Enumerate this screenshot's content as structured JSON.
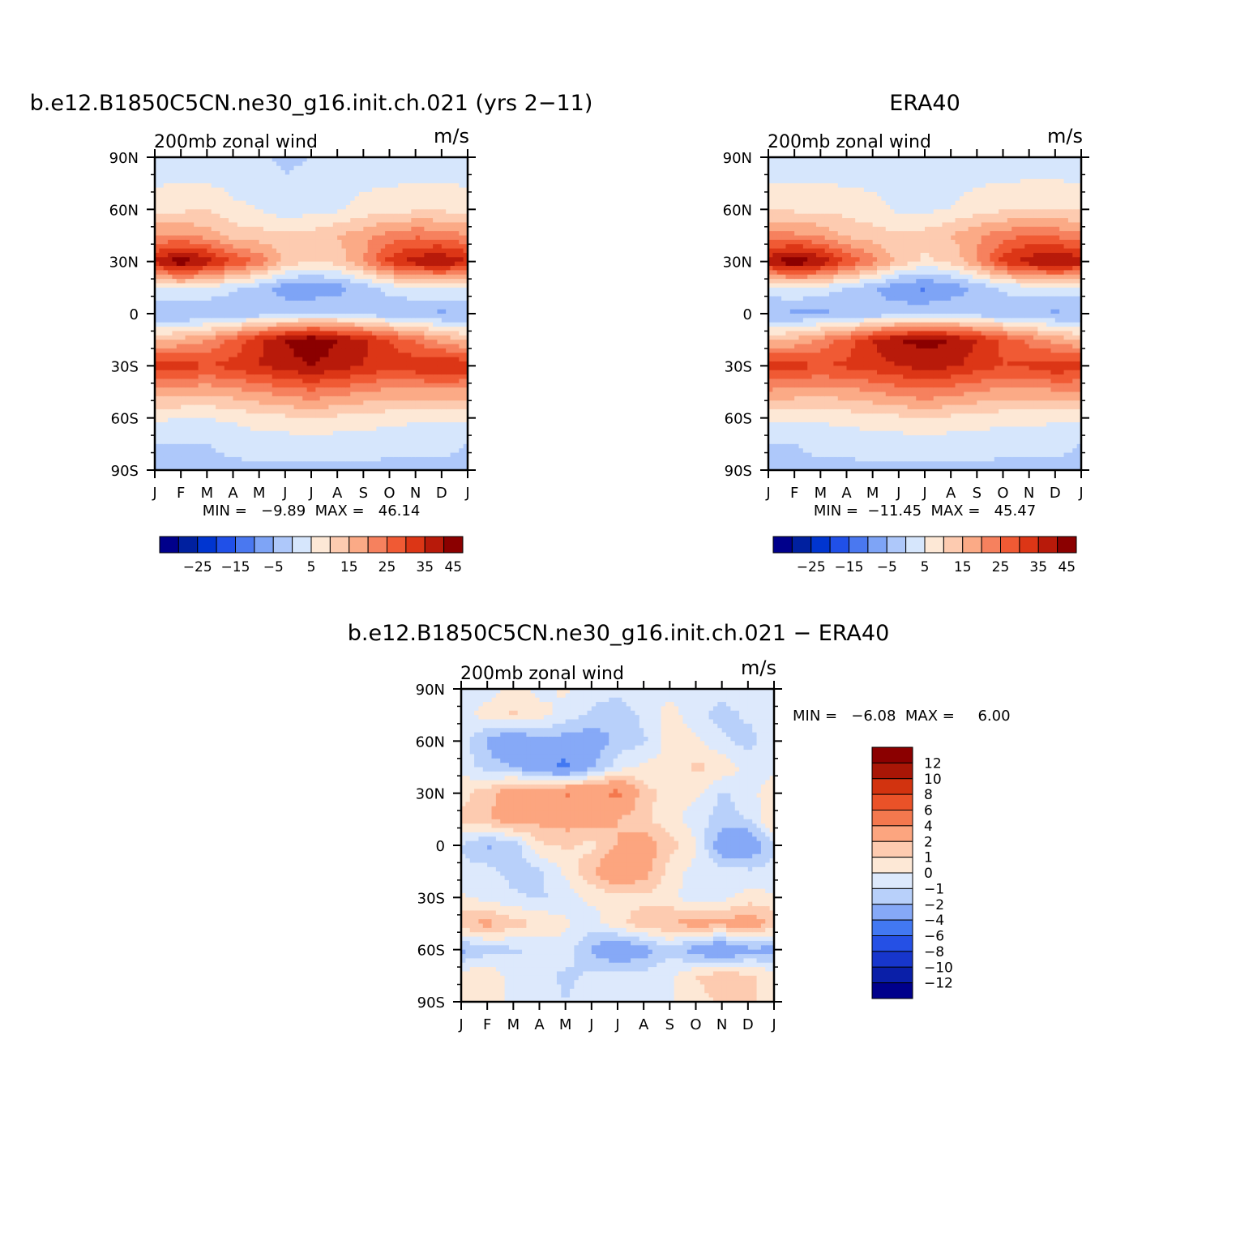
{
  "colors": {
    "full_scale": [
      "#00008b",
      "#00209f",
      "#0035d0",
      "#2050e8",
      "#4a78f0",
      "#7ea4f6",
      "#aec8fa",
      "#d6e6fc",
      "#fde8d6",
      "#fdcbb0",
      "#fbaa86",
      "#f6815e",
      "#f05a34",
      "#dc3616",
      "#b81a0a",
      "#8b0000"
    ],
    "diff_scale": [
      "#00008b",
      "#0a1fa8",
      "#1736cc",
      "#2550e5",
      "#4278f2",
      "#86a9f7",
      "#b8d0fa",
      "#dde9fc",
      "#fde8d6",
      "#fdcbb0",
      "#fca57f",
      "#f4784e",
      "#ea5228",
      "#d2330f",
      "#a81606",
      "#8b0000"
    ]
  },
  "chart_data": [
    {
      "id": "model",
      "type": "heatmap",
      "title": "b.e12.B1850C5CN.ne30_g16.init.ch.021 (yrs 2−11)",
      "left_label": "200mb zonal wind",
      "right_label": "m/s",
      "xlabel": "",
      "ylabel": "",
      "x_ticks": [
        "J",
        "F",
        "M",
        "A",
        "M",
        "J",
        "J",
        "A",
        "S",
        "O",
        "N",
        "D",
        "J"
      ],
      "y_ticks": [
        "90N",
        "60N",
        "30N",
        "0",
        "30S",
        "60S",
        "90S"
      ],
      "min_max_text": "MIN =   −9.89  MAX =   46.14",
      "min": -9.89,
      "max": 46.14,
      "levels": [
        -30,
        -25,
        -20,
        -15,
        -10,
        -5,
        0,
        5,
        10,
        15,
        20,
        25,
        30,
        35,
        40,
        45
      ],
      "colorbar_labels": [
        "−25",
        "−15",
        "−5",
        "5",
        "15",
        "25",
        "35",
        "45"
      ],
      "lat_grid": [
        90,
        60,
        45,
        30,
        15,
        0,
        -15,
        -30,
        -45,
        -60,
        -75,
        -90
      ],
      "values": [
        [
          1,
          1,
          0,
          1,
          1,
          -1,
          0,
          1,
          1,
          1,
          1,
          1,
          1
        ],
        [
          8,
          9,
          10,
          6,
          5,
          2,
          3,
          4,
          7,
          8,
          9,
          9,
          8
        ],
        [
          20,
          20,
          18,
          13,
          12,
          11,
          12,
          15,
          18,
          22,
          24,
          23,
          20
        ],
        [
          36,
          44,
          38,
          30,
          24,
          14,
          10,
          12,
          20,
          32,
          38,
          40,
          36
        ],
        [
          4,
          6,
          4,
          1,
          -2,
          -8,
          -9,
          -7,
          -3,
          2,
          4,
          5,
          4
        ],
        [
          -5,
          -6,
          -5,
          -4,
          -3,
          -1,
          0,
          0,
          -2,
          -4,
          -5,
          -6,
          -5
        ],
        [
          14,
          16,
          20,
          26,
          34,
          40,
          44,
          40,
          36,
          30,
          24,
          18,
          14
        ],
        [
          34,
          33,
          30,
          32,
          35,
          38,
          40,
          38,
          35,
          32,
          34,
          36,
          34
        ],
        [
          18,
          17,
          16,
          18,
          20,
          22,
          24,
          22,
          20,
          18,
          18,
          18,
          18
        ],
        [
          6,
          5,
          5,
          6,
          8,
          9,
          10,
          9,
          8,
          7,
          6,
          6,
          6
        ],
        [
          0,
          0,
          0,
          1,
          2,
          2,
          2,
          2,
          2,
          1,
          1,
          1,
          0
        ],
        [
          -1,
          -1,
          -1,
          -1,
          -1,
          -1,
          -1,
          -1,
          -1,
          -1,
          -1,
          -1,
          -1
        ]
      ]
    },
    {
      "id": "obs",
      "type": "heatmap",
      "title": "ERA40",
      "left_label": "200mb zonal wind",
      "right_label": "m/s",
      "xlabel": "",
      "ylabel": "",
      "x_ticks": [
        "J",
        "F",
        "M",
        "A",
        "M",
        "J",
        "J",
        "A",
        "S",
        "O",
        "N",
        "D",
        "J"
      ],
      "y_ticks": [
        "90N",
        "60N",
        "30N",
        "0",
        "30S",
        "60S",
        "90S"
      ],
      "min_max_text": "MIN =  −11.45  MAX =   45.47",
      "min": -11.45,
      "max": 45.47,
      "levels": [
        -30,
        -25,
        -20,
        -15,
        -10,
        -5,
        0,
        5,
        10,
        15,
        20,
        25,
        30,
        35,
        40,
        45
      ],
      "colorbar_labels": [
        "−25",
        "−15",
        "−5",
        "5",
        "15",
        "25",
        "35",
        "45"
      ],
      "lat_grid": [
        90,
        60,
        45,
        30,
        15,
        0,
        -15,
        -30,
        -45,
        -60,
        -75,
        -90
      ],
      "values": [
        [
          1,
          1,
          1,
          1,
          1,
          1,
          1,
          1,
          1,
          1,
          1,
          1,
          1
        ],
        [
          9,
          9,
          9,
          8,
          7,
          4,
          4,
          5,
          8,
          9,
          10,
          10,
          9
        ],
        [
          21,
          21,
          19,
          14,
          12,
          11,
          12,
          15,
          19,
          23,
          25,
          24,
          21
        ],
        [
          38,
          45,
          39,
          30,
          23,
          13,
          9,
          11,
          20,
          32,
          38,
          41,
          38
        ],
        [
          3,
          5,
          3,
          0,
          -4,
          -9,
          -11,
          -8,
          -4,
          1,
          3,
          4,
          3
        ],
        [
          -5,
          -6,
          -6,
          -5,
          -4,
          -2,
          -1,
          -1,
          -3,
          -4,
          -5,
          -6,
          -5
        ],
        [
          14,
          16,
          21,
          27,
          35,
          40,
          42,
          40,
          35,
          29,
          23,
          18,
          14
        ],
        [
          33,
          32,
          30,
          31,
          33,
          35,
          37,
          36,
          33,
          30,
          31,
          34,
          33
        ],
        [
          19,
          18,
          17,
          18,
          20,
          22,
          24,
          22,
          20,
          18,
          18,
          19,
          19
        ],
        [
          6,
          6,
          6,
          7,
          8,
          9,
          10,
          9,
          8,
          7,
          7,
          6,
          6
        ],
        [
          0,
          0,
          1,
          1,
          2,
          2,
          2,
          2,
          2,
          1,
          1,
          1,
          0
        ],
        [
          -1,
          -1,
          -1,
          -1,
          -1,
          -1,
          -1,
          -1,
          -1,
          -1,
          -1,
          -1,
          -1
        ]
      ]
    },
    {
      "id": "diff",
      "type": "heatmap",
      "title": "b.e12.B1850C5CN.ne30_g16.init.ch.021 − ERA40",
      "left_label": "200mb zonal wind",
      "right_label": "m/s",
      "xlabel": "",
      "ylabel": "",
      "x_ticks": [
        "J",
        "F",
        "M",
        "A",
        "M",
        "J",
        "J",
        "A",
        "S",
        "O",
        "N",
        "D",
        "J"
      ],
      "y_ticks": [
        "90N",
        "60N",
        "30N",
        "0",
        "30S",
        "60S",
        "90S"
      ],
      "min_max_text": "MIN =   −6.08  MAX =     6.00",
      "min": -6.08,
      "max": 6.0,
      "levels": [
        -12,
        -10,
        -8,
        -6,
        -4,
        -2,
        -1,
        0,
        1,
        2,
        4,
        6,
        8,
        10,
        12
      ],
      "colorbar_labels": [
        "12",
        "10",
        "8",
        "6",
        "4",
        "2",
        "1",
        "0",
        "−1",
        "−2",
        "−4",
        "−6",
        "−8",
        "−10",
        "−12"
      ],
      "lat_grid": [
        90,
        75,
        60,
        45,
        30,
        15,
        0,
        -15,
        -30,
        -45,
        -60,
        -75,
        -90
      ],
      "values": [
        [
          -0.5,
          -0.5,
          0.3,
          -0.3,
          0.2,
          -0.5,
          -0.4,
          -0.2,
          -0.3,
          -0.5,
          -0.6,
          -0.4,
          -0.5
        ],
        [
          -0.5,
          0.5,
          1.2,
          0.4,
          -0.4,
          -1.2,
          -2.1,
          -0.6,
          0.4,
          -0.6,
          -1.4,
          -0.8,
          -0.5
        ],
        [
          -0.4,
          -2.2,
          -3.6,
          -2.2,
          -2.6,
          -2.8,
          -1.6,
          -1.2,
          0.4,
          0.2,
          -0.8,
          -1.4,
          -0.4
        ],
        [
          -0.3,
          -1.5,
          -2.0,
          -3.2,
          -4.6,
          -2.2,
          -0.5,
          0.3,
          0.4,
          1.2,
          0.8,
          -0.4,
          -0.3
        ],
        [
          0.6,
          1.6,
          3.0,
          3.2,
          4.2,
          3.6,
          4.5,
          1.4,
          0.6,
          0.3,
          -1.2,
          -0.4,
          0.6
        ],
        [
          1.2,
          1.8,
          2.8,
          2.4,
          2.6,
          2.8,
          2.0,
          1.2,
          0.4,
          -0.6,
          -1.4,
          -1.0,
          1.2
        ],
        [
          -1.0,
          -2.2,
          -1.6,
          0.8,
          1.2,
          0.6,
          2.0,
          2.8,
          1.4,
          0.2,
          -3.0,
          -3.4,
          -1.0
        ],
        [
          -0.8,
          -0.6,
          -1.4,
          -1.2,
          0.2,
          1.8,
          3.8,
          2.6,
          0.6,
          -0.4,
          -0.6,
          -0.8,
          -0.8
        ],
        [
          0.2,
          -0.4,
          -0.8,
          -1.2,
          -0.6,
          0.3,
          0.4,
          0.8,
          0.4,
          -0.8,
          -0.3,
          0.4,
          0.2
        ],
        [
          1.8,
          2.4,
          1.4,
          1.0,
          0.2,
          -0.6,
          0.8,
          1.6,
          2.0,
          2.6,
          2.4,
          3.0,
          1.8
        ],
        [
          -2.4,
          -1.4,
          -1.2,
          -0.8,
          -0.4,
          -2.2,
          -3.6,
          -2.6,
          -1.2,
          -2.8,
          -3.8,
          -2.4,
          -2.4
        ],
        [
          0.6,
          0.8,
          -0.4,
          -0.6,
          -1.2,
          -0.8,
          -0.4,
          -0.6,
          -0.2,
          1.0,
          1.6,
          1.2,
          0.6
        ],
        [
          0.4,
          0.8,
          -0.3,
          -0.6,
          -1.0,
          -0.6,
          -0.4,
          -0.4,
          -0.2,
          0.6,
          1.2,
          1.4,
          0.4
        ]
      ]
    }
  ]
}
